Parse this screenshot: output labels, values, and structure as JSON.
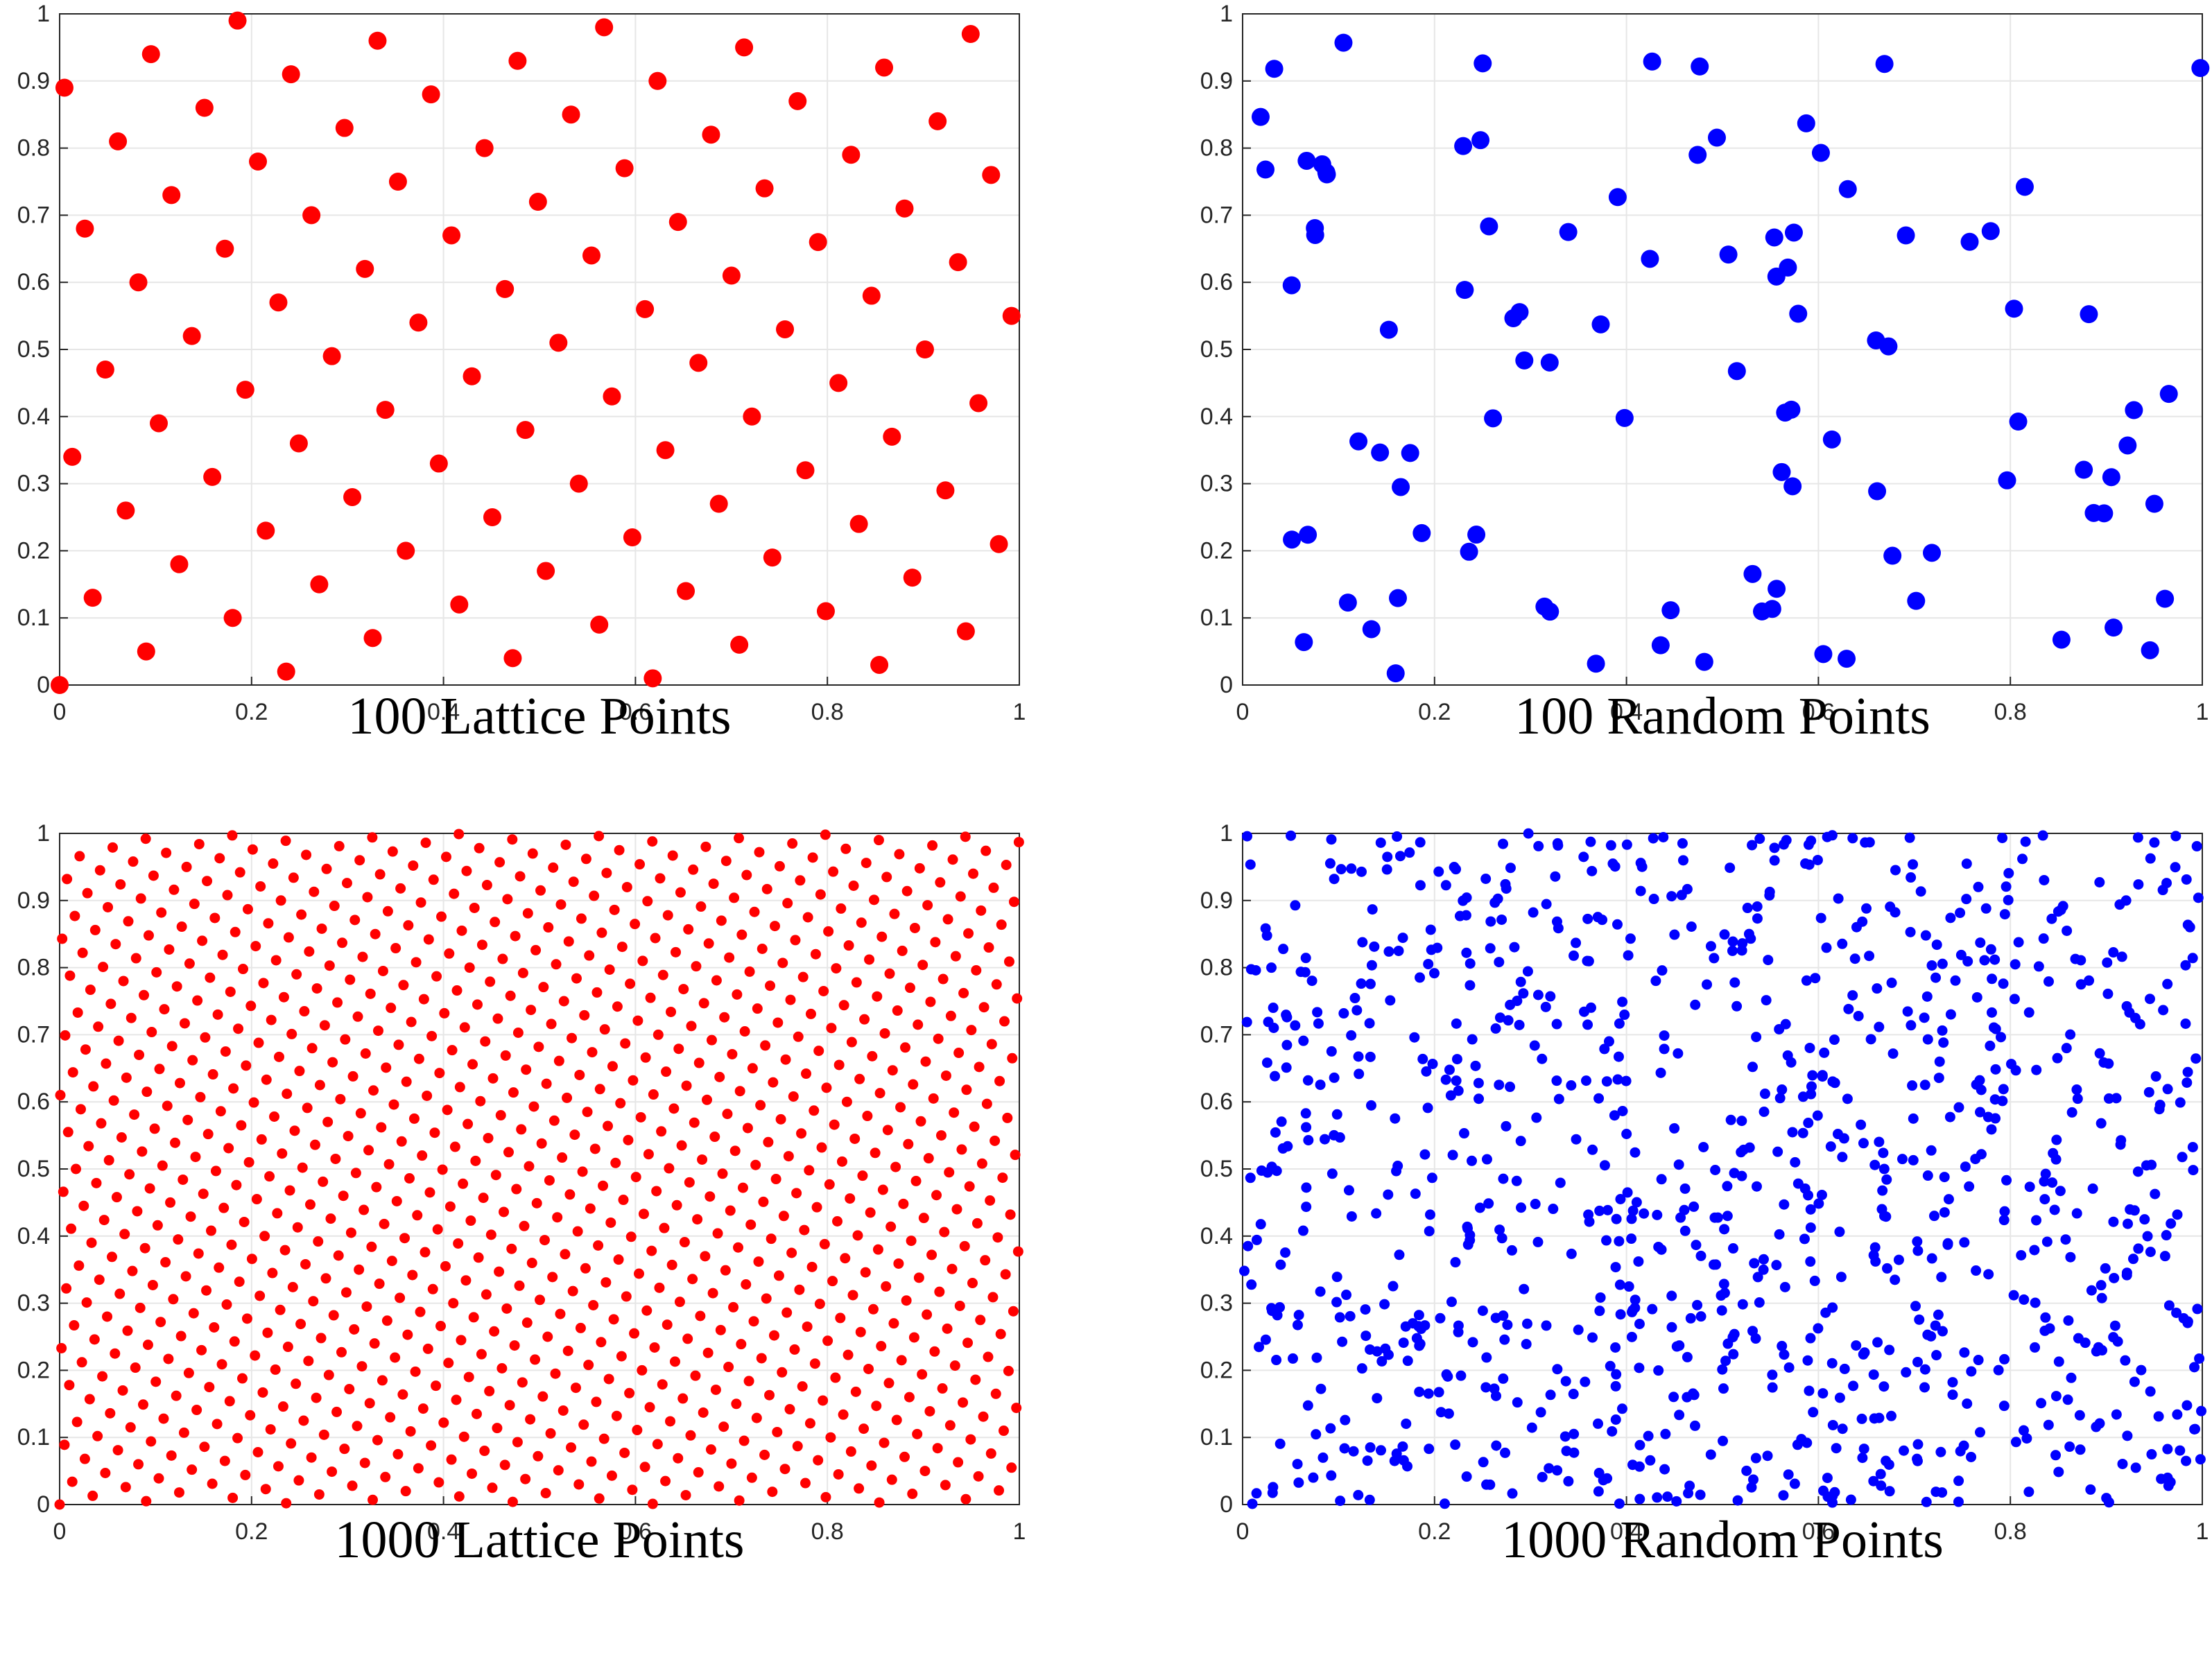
{
  "chart_data": [
    {
      "type": "scatter",
      "title": "100 Lattice Points",
      "generator": {
        "kind": "lattice",
        "n": 100,
        "step": 0.61803398875
      },
      "marker_color": "#ff0000",
      "xlim": [
        0,
        1
      ],
      "ylim": [
        0,
        1
      ],
      "xticks": [
        "0",
        "0.2",
        "0.4",
        "0.6",
        "0.8",
        "1"
      ],
      "yticks": [
        "0",
        "0.1",
        "0.2",
        "0.3",
        "0.4",
        "0.5",
        "0.6",
        "0.7",
        "0.8",
        "0.9",
        "1"
      ],
      "grid": true
    },
    {
      "type": "scatter",
      "title": "100 Random Points",
      "generator": {
        "kind": "random",
        "n": 100,
        "seed": 17
      },
      "marker_color": "#0000ff",
      "xlim": [
        0,
        1
      ],
      "ylim": [
        0,
        1
      ],
      "xticks": [
        "0",
        "0.2",
        "0.4",
        "0.6",
        "0.8",
        "1"
      ],
      "yticks": [
        "0",
        "0.1",
        "0.2",
        "0.3",
        "0.4",
        "0.5",
        "0.6",
        "0.7",
        "0.8",
        "0.9",
        "1"
      ],
      "grid": true
    },
    {
      "type": "scatter",
      "title": "1000 Lattice Points",
      "generator": {
        "kind": "lattice",
        "n": 1000,
        "step": 0.61803398875
      },
      "marker_color": "#ff0000",
      "xlim": [
        0,
        1
      ],
      "ylim": [
        0,
        1
      ],
      "xticks": [
        "0",
        "0.2",
        "0.4",
        "0.6",
        "0.8",
        "1"
      ],
      "yticks": [
        "0",
        "0.1",
        "0.2",
        "0.3",
        "0.4",
        "0.5",
        "0.6",
        "0.7",
        "0.8",
        "0.9",
        "1"
      ],
      "grid": true
    },
    {
      "type": "scatter",
      "title": "1000 Random Points",
      "generator": {
        "kind": "random",
        "n": 1000,
        "seed": 91
      },
      "marker_color": "#0000ff",
      "xlim": [
        0,
        1
      ],
      "ylim": [
        0,
        1
      ],
      "xticks": [
        "0",
        "0.2",
        "0.4",
        "0.6",
        "0.8",
        "1"
      ],
      "yticks": [
        "0",
        "0.1",
        "0.2",
        "0.3",
        "0.4",
        "0.5",
        "0.6",
        "0.7",
        "0.8",
        "0.9",
        "1"
      ],
      "grid": true
    }
  ]
}
